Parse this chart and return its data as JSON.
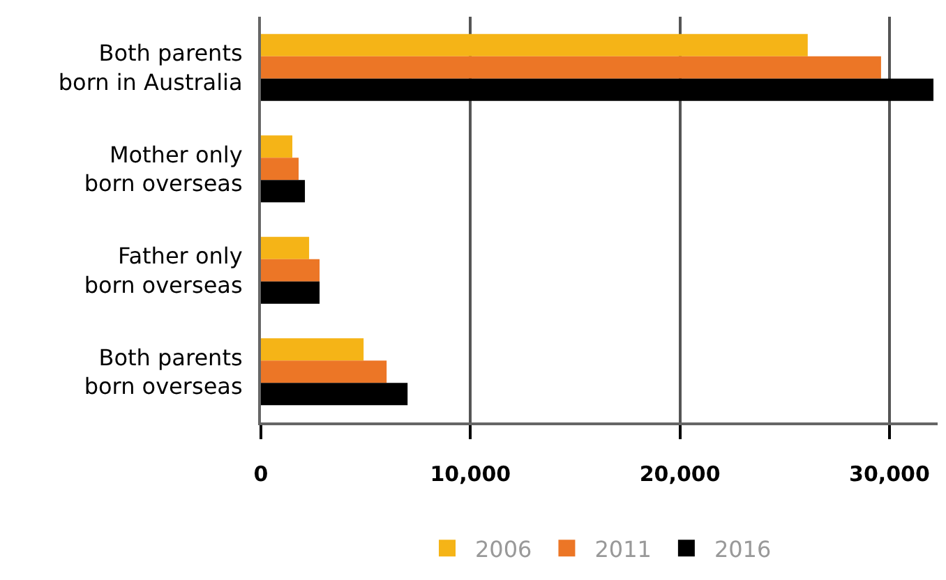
{
  "chart_data": {
    "type": "bar",
    "orientation": "horizontal",
    "categories": [
      "Both parents born in Australia",
      "Mother only born overseas",
      "Father only born overseas",
      "Both parents born overseas"
    ],
    "series": [
      {
        "name": "2006",
        "color": "#f5b417",
        "values": [
          26100,
          1500,
          2300,
          4900
        ]
      },
      {
        "name": "2011",
        "color": "#ec7626",
        "values": [
          29600,
          1800,
          2800,
          6000
        ]
      },
      {
        "name": "2016",
        "color": "#000000",
        "values": [
          32100,
          2100,
          2800,
          7000
        ]
      }
    ],
    "xlim": [
      0,
      32300
    ],
    "xticks": [
      0,
      {
        "value": 10000,
        "label": "10,000"
      },
      {
        "value": 20000,
        "label": "20,000"
      },
      {
        "value": 30000,
        "label": "30,000"
      }
    ],
    "grid": "x",
    "legend": "bottom"
  }
}
